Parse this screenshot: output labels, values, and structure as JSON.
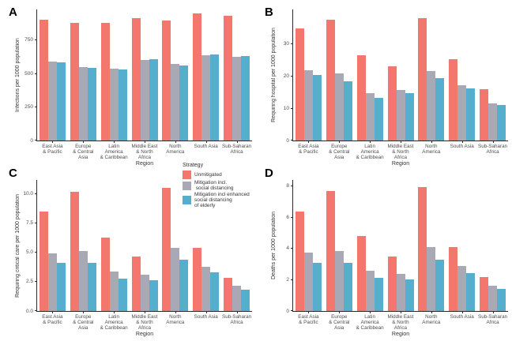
{
  "figure": {
    "background": "#ffffff",
    "axis_color": "#2b2b2b",
    "tick_text_color": "#4d4d4d"
  },
  "strategy_colors": [
    "#f4776e",
    "#a8a9b4",
    "#55aecd"
  ],
  "legend": {
    "title": "Strategy",
    "items": [
      {
        "label_lines": [
          "Unmitigated"
        ],
        "color": "#f4776e"
      },
      {
        "label_lines": [
          "Mitigation incl.",
          " social distancing"
        ],
        "color": "#a8a9b4"
      },
      {
        "label_lines": [
          "Mitigation incl enhanced",
          "social distancing",
          "of elderly"
        ],
        "color": "#55aecd"
      }
    ]
  },
  "chart_data": [
    {
      "type": "bar",
      "panel_label": "A",
      "ylabel": "Infections per 1000 population",
      "xlabel": "Region",
      "categories": [
        [
          "East Asia",
          "& Pacific"
        ],
        [
          "Europe",
          "& Central",
          "Asia"
        ],
        [
          "Latin",
          "America",
          "& Caribbean"
        ],
        [
          "Middle East",
          "& North",
          "Africa"
        ],
        [
          "North",
          "America"
        ],
        [
          "South Asia"
        ],
        [
          "Sub-Saharan",
          "Africa"
        ]
      ],
      "yticks": [
        0,
        250,
        500,
        750
      ],
      "ytick_labels": [
        "0",
        "250",
        "500",
        "750"
      ],
      "ylim": [
        0,
        980
      ],
      "legend_position": "none",
      "grid": false,
      "series": [
        {
          "name": "Unmitigated",
          "values": [
            905,
            878,
            878,
            915,
            895,
            950,
            935
          ]
        },
        {
          "name": "Mitigation incl. social distancing",
          "values": [
            590,
            552,
            538,
            600,
            572,
            640,
            625
          ]
        },
        {
          "name": "Mitigation incl enhanced social distancing of elderly",
          "values": [
            585,
            543,
            530,
            607,
            562,
            646,
            632
          ]
        }
      ]
    },
    {
      "type": "bar",
      "panel_label": "B",
      "ylabel": "Requiring hospital per 1000 population",
      "xlabel": "Region",
      "categories": [
        [
          "East Asia",
          "& Pacific"
        ],
        [
          "Europe",
          "& Central",
          "Asia"
        ],
        [
          "Latin",
          "America",
          "& Caribbean"
        ],
        [
          "Middle East",
          "& North",
          "Africa"
        ],
        [
          "North",
          "America"
        ],
        [
          "South Asia"
        ],
        [
          "Sub-Saharan",
          "Africa"
        ]
      ],
      "yticks": [
        0,
        10,
        20,
        30
      ],
      "ytick_labels": [
        "0",
        "10",
        "20",
        "30"
      ],
      "ylim": [
        0,
        40.8
      ],
      "legend_position": "none",
      "grid": false,
      "series": [
        {
          "name": "Unmitigated",
          "values": [
            35,
            37.5,
            26.5,
            23,
            38,
            25.3,
            15.9
          ]
        },
        {
          "name": "Mitigation incl. social distancing",
          "values": [
            22,
            21,
            14.7,
            15.8,
            21.6,
            17.3,
            11.5
          ]
        },
        {
          "name": "Mitigation incl enhanced social distancing of elderly",
          "values": [
            20.3,
            18.5,
            13.3,
            14.8,
            19.3,
            16.3,
            11
          ]
        }
      ]
    },
    {
      "type": "bar",
      "panel_label": "C",
      "ylabel": "Requiring critical care per 1000 population",
      "xlabel": "Region",
      "categories": [
        [
          "East Asia",
          "& Pacific"
        ],
        [
          "Europe",
          "& Central",
          "Asia"
        ],
        [
          "Latin",
          "America",
          "& Caribbean"
        ],
        [
          "Middle East",
          "& North",
          "Africa"
        ],
        [
          "North",
          "America"
        ],
        [
          "South Asia"
        ],
        [
          "Sub-Saharan",
          "Africa"
        ]
      ],
      "yticks": [
        0,
        2.5,
        5,
        7.5,
        10
      ],
      "ytick_labels": [
        "0.0",
        "2.5",
        "5.0",
        "7.5",
        "10.0"
      ],
      "ylim": [
        0,
        11.2
      ],
      "legend_position": "top-right",
      "grid": false,
      "series": [
        {
          "name": "Unmitigated",
          "values": [
            8.5,
            10.2,
            6.3,
            4.65,
            10.5,
            5.4,
            2.85
          ]
        },
        {
          "name": "Mitigation incl. social distancing",
          "values": [
            4.9,
            5.1,
            3.4,
            3.1,
            5.4,
            3.75,
            2.15
          ]
        },
        {
          "name": "Mitigation incl enhanced social distancing of elderly",
          "values": [
            4.1,
            4.1,
            2.8,
            2.65,
            4.4,
            3.3,
            1.85
          ]
        }
      ]
    },
    {
      "type": "bar",
      "panel_label": "D",
      "ylabel": "Deaths per 1000 population",
      "xlabel": "Region",
      "categories": [
        [
          "East Asia",
          "& Pacific"
        ],
        [
          "Europe",
          "& Central",
          "Asia"
        ],
        [
          "Latin",
          "America",
          "& Caribbean"
        ],
        [
          "Middle East",
          "& North",
          "Africa"
        ],
        [
          "North",
          "America"
        ],
        [
          "South Asia"
        ],
        [
          "Sub-Saharan",
          "Africa"
        ]
      ],
      "yticks": [
        0,
        2,
        4,
        6,
        8
      ],
      "ytick_labels": [
        "0",
        "2",
        "4",
        "6",
        "8"
      ],
      "ylim": [
        0,
        8.4
      ],
      "legend_position": "none",
      "grid": false,
      "series": [
        {
          "name": "Unmitigated",
          "values": [
            6.4,
            7.7,
            4.8,
            3.5,
            7.95,
            4.1,
            2.2
          ]
        },
        {
          "name": "Mitigation incl. social distancing",
          "values": [
            3.75,
            3.85,
            2.6,
            2.4,
            4.1,
            2.9,
            1.6
          ]
        },
        {
          "name": "Mitigation incl enhanced social distancing of elderly",
          "values": [
            3.1,
            3.1,
            2.15,
            2.05,
            3.3,
            2.45,
            1.4
          ]
        }
      ]
    }
  ]
}
